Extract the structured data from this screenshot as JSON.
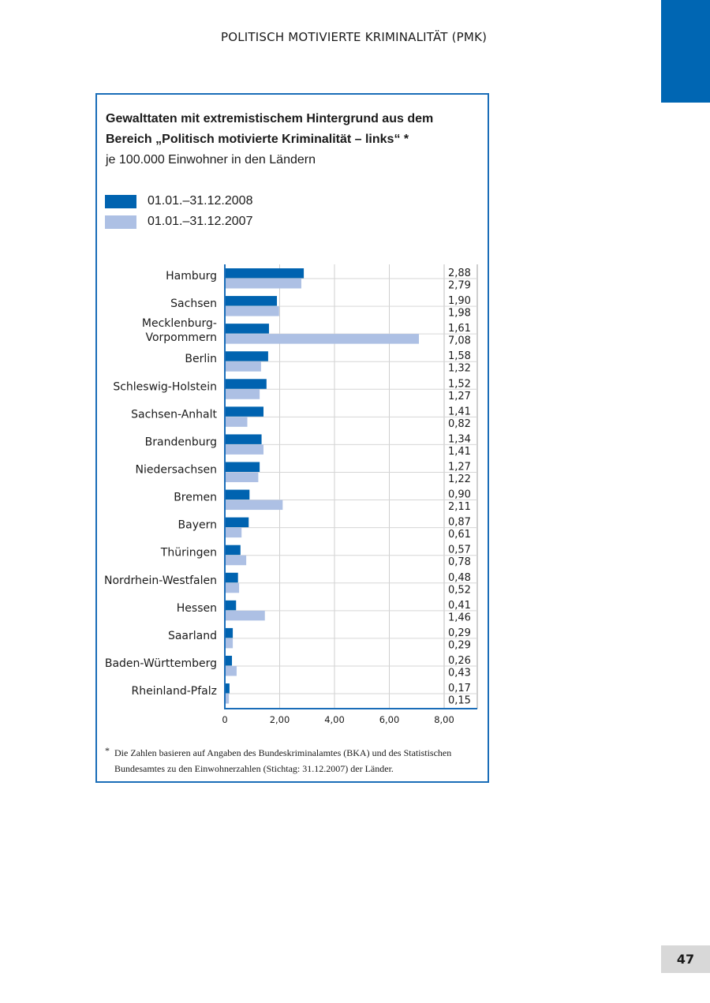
{
  "page": {
    "header": "POLITISCH MOTIVIERTE KRIMINALITÄT (PMK)",
    "page_number": "47",
    "accent_color": "#0066b3"
  },
  "chart_data": {
    "type": "bar",
    "orientation": "horizontal",
    "title": "Gewalttaten mit extremistischem Hintergrund aus dem Bereich „Politisch motivierte Kriminalität – links“ *",
    "subtitle": "je 100.000 Einwohner in den Ländern",
    "categories": [
      "Hamburg",
      "Sachsen",
      "Mecklenburg-Vorpommern",
      "Berlin",
      "Schleswig-Holstein",
      "Sachsen-Anhalt",
      "Brandenburg",
      "Niedersachsen",
      "Bremen",
      "Bayern",
      "Thüringen",
      "Nordrhein-Westfalen",
      "Hessen",
      "Saarland",
      "Baden-Württemberg",
      "Rheinland-Pfalz"
    ],
    "category_lines": [
      [
        "Hamburg"
      ],
      [
        "Sachsen"
      ],
      [
        "Mecklenburg-",
        "Vorpommern"
      ],
      [
        "Berlin"
      ],
      [
        "Schleswig-Holstein"
      ],
      [
        "Sachsen-Anhalt"
      ],
      [
        "Brandenburg"
      ],
      [
        "Niedersachsen"
      ],
      [
        "Bremen"
      ],
      [
        "Bayern"
      ],
      [
        "Thüringen"
      ],
      [
        "Nordrhein-Westfalen"
      ],
      [
        "Hessen"
      ],
      [
        "Saarland"
      ],
      [
        "Baden-Württemberg"
      ],
      [
        "Rheinland-Pfalz"
      ]
    ],
    "series": [
      {
        "name": "01.01.–31.12.2008",
        "color": "#0063b0",
        "values": [
          2.88,
          1.9,
          1.61,
          1.58,
          1.52,
          1.41,
          1.34,
          1.27,
          0.9,
          0.87,
          0.57,
          0.48,
          0.41,
          0.29,
          0.26,
          0.17
        ]
      },
      {
        "name": "01.01.–31.12.2007",
        "color": "#adc0e4",
        "values": [
          2.79,
          1.98,
          7.08,
          1.32,
          1.27,
          0.82,
          1.41,
          1.22,
          2.11,
          0.61,
          0.78,
          0.52,
          1.46,
          0.29,
          0.43,
          0.15
        ]
      }
    ],
    "xlim": [
      0,
      8
    ],
    "xticks": [
      "0",
      "2,00",
      "4,00",
      "6,00",
      "8,00"
    ],
    "grid": true,
    "legend_position": "top-left",
    "value_labels": true
  },
  "footnote": {
    "marker": "*",
    "text": "Die Zahlen basieren auf Angaben des Bundeskriminalamtes (BKA) und des Statistischen Bundesamtes zu den Einwohnerzahlen (Stichtag: 31.12.2007) der Länder."
  }
}
